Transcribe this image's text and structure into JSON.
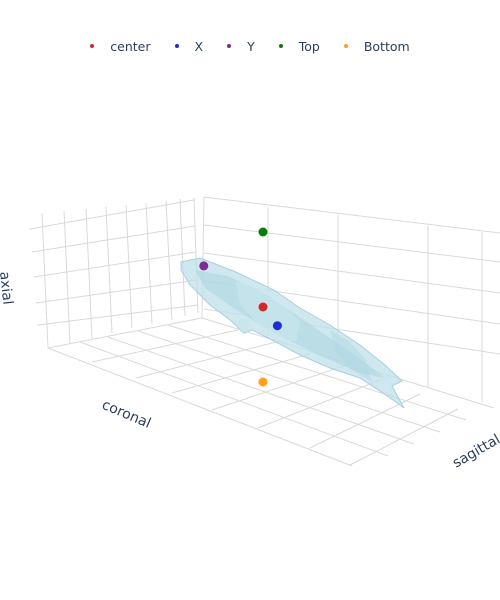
{
  "chart_data": {
    "type": "scatter3d",
    "axes": {
      "x_label": "sagittal",
      "y_label": "coronal",
      "z_label": "axial"
    },
    "grid": true,
    "legend_position": "top-center",
    "series": [
      {
        "name": "center",
        "color": "#d62728",
        "point": [
          0.0,
          0.0,
          0.0
        ]
      },
      {
        "name": "X",
        "color": "#1f2bd6",
        "point": [
          0.8,
          0.2,
          -0.1
        ]
      },
      {
        "name": "Y",
        "color": "#7b2d8e",
        "point": [
          -0.8,
          0.6,
          0.1
        ]
      },
      {
        "name": "Top",
        "color": "#0a7a0a",
        "point": [
          0.0,
          0.0,
          1.0
        ]
      },
      {
        "name": "Bottom",
        "color": "#ff9f1a",
        "point": [
          0.0,
          0.0,
          -1.0
        ]
      }
    ],
    "surface": {
      "color": "#a8d5e2",
      "kind": "mesh"
    }
  }
}
